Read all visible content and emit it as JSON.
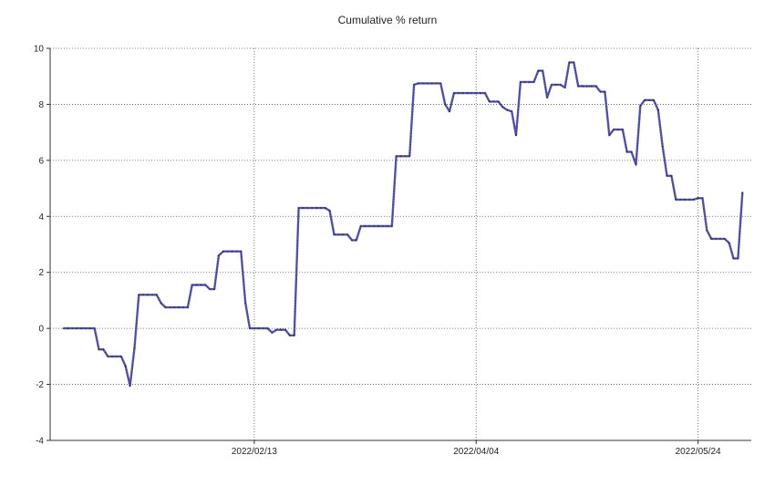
{
  "chart_data": {
    "type": "line",
    "title": "Cumulative % return",
    "xlabel": "",
    "ylabel": "",
    "ylim": [
      -4,
      10
    ],
    "yticks": [
      -4,
      -2,
      0,
      2,
      4,
      6,
      8,
      10
    ],
    "xlim": [
      "2021-12-29",
      "2022-06-05"
    ],
    "xtick_labels": [
      "2022/02/13",
      "2022/04/04",
      "2022/05/24"
    ],
    "xtick_values": [
      "2022-02-13",
      "2022-04-04",
      "2022-05-24"
    ],
    "grid": true,
    "legend": "none",
    "colors": {
      "line": "#5a5aa8",
      "grid": "#555555",
      "axis": "#333333"
    },
    "series": [
      {
        "x": [
          "2022-01-01",
          "2022-01-02",
          "2022-01-03",
          "2022-01-04",
          "2022-01-05",
          "2022-01-06",
          "2022-01-07",
          "2022-01-08",
          "2022-01-09",
          "2022-01-10",
          "2022-01-11",
          "2022-01-12",
          "2022-01-13",
          "2022-01-14",
          "2022-01-15",
          "2022-01-16",
          "2022-01-17",
          "2022-01-18",
          "2022-01-19",
          "2022-01-20",
          "2022-01-21",
          "2022-01-22",
          "2022-01-23",
          "2022-01-24",
          "2022-01-25",
          "2022-01-26",
          "2022-01-27",
          "2022-01-28",
          "2022-01-29",
          "2022-01-30",
          "2022-01-31",
          "2022-02-01",
          "2022-02-02",
          "2022-02-03",
          "2022-02-04",
          "2022-02-05",
          "2022-02-06",
          "2022-02-07",
          "2022-02-08",
          "2022-02-09",
          "2022-02-10",
          "2022-02-11",
          "2022-02-12",
          "2022-02-13",
          "2022-02-14",
          "2022-02-15",
          "2022-02-16",
          "2022-02-17",
          "2022-02-18",
          "2022-02-19",
          "2022-02-20",
          "2022-02-21",
          "2022-02-22",
          "2022-02-23",
          "2022-02-24",
          "2022-02-25",
          "2022-02-26",
          "2022-02-27",
          "2022-02-28",
          "2022-03-01",
          "2022-03-02",
          "2022-03-03",
          "2022-03-04",
          "2022-03-05",
          "2022-03-06",
          "2022-03-07",
          "2022-03-08",
          "2022-03-09",
          "2022-03-10",
          "2022-03-11",
          "2022-03-12",
          "2022-03-13",
          "2022-03-14",
          "2022-03-15",
          "2022-03-16",
          "2022-03-17",
          "2022-03-18",
          "2022-03-19",
          "2022-03-20",
          "2022-03-21",
          "2022-03-22",
          "2022-03-23",
          "2022-03-24",
          "2022-03-25",
          "2022-03-26",
          "2022-03-27",
          "2022-03-28",
          "2022-03-29",
          "2022-03-30",
          "2022-03-31",
          "2022-04-01",
          "2022-04-02",
          "2022-04-03",
          "2022-04-04",
          "2022-04-05",
          "2022-04-06",
          "2022-04-07",
          "2022-04-08",
          "2022-04-09",
          "2022-04-10",
          "2022-04-11",
          "2022-04-12",
          "2022-04-13",
          "2022-04-14",
          "2022-04-15",
          "2022-04-16",
          "2022-04-17",
          "2022-04-18",
          "2022-04-19",
          "2022-04-20",
          "2022-04-21",
          "2022-04-22",
          "2022-04-23",
          "2022-04-24",
          "2022-04-25",
          "2022-04-26",
          "2022-04-27",
          "2022-04-28",
          "2022-04-29",
          "2022-04-30",
          "2022-05-01",
          "2022-05-02",
          "2022-05-03",
          "2022-05-04",
          "2022-05-05",
          "2022-05-06",
          "2022-05-07",
          "2022-05-08",
          "2022-05-09",
          "2022-05-10",
          "2022-05-11",
          "2022-05-12",
          "2022-05-13",
          "2022-05-14",
          "2022-05-15",
          "2022-05-16",
          "2022-05-17",
          "2022-05-18",
          "2022-05-19",
          "2022-05-20",
          "2022-05-21",
          "2022-05-22",
          "2022-05-23",
          "2022-05-24",
          "2022-05-25",
          "2022-05-26",
          "2022-05-27",
          "2022-05-28",
          "2022-05-29",
          "2022-05-30",
          "2022-05-31",
          "2022-06-01",
          "2022-06-02",
          "2022-06-03"
        ],
        "values": [
          0,
          0,
          0,
          0,
          0,
          0,
          0,
          0,
          -0.75,
          -0.75,
          -1.0,
          -1.0,
          -1.0,
          -1.0,
          -1.35,
          -2.05,
          -0.7,
          1.2,
          1.2,
          1.2,
          1.2,
          1.2,
          0.9,
          0.75,
          0.75,
          0.75,
          0.75,
          0.75,
          0.75,
          1.55,
          1.55,
          1.55,
          1.55,
          1.4,
          1.4,
          2.6,
          2.75,
          2.75,
          2.75,
          2.75,
          2.75,
          0.9,
          0,
          0,
          0,
          0,
          0,
          -0.15,
          -0.05,
          -0.05,
          -0.05,
          -0.25,
          -0.25,
          4.3,
          4.3,
          4.3,
          4.3,
          4.3,
          4.3,
          4.3,
          4.2,
          3.35,
          3.35,
          3.35,
          3.35,
          3.15,
          3.15,
          3.65,
          3.65,
          3.65,
          3.65,
          3.65,
          3.65,
          3.65,
          3.65,
          6.15,
          6.15,
          6.15,
          6.15,
          8.7,
          8.75,
          8.75,
          8.75,
          8.75,
          8.75,
          8.75,
          8.0,
          7.75,
          8.4,
          8.4,
          8.4,
          8.4,
          8.4,
          8.4,
          8.4,
          8.4,
          8.1,
          8.1,
          8.1,
          7.9,
          7.8,
          7.75,
          6.9,
          8.8,
          8.8,
          8.8,
          8.8,
          9.2,
          9.2,
          8.25,
          8.7,
          8.7,
          8.7,
          8.6,
          9.5,
          9.5,
          8.65,
          8.65,
          8.65,
          8.65,
          8.65,
          8.45,
          8.45,
          6.9,
          7.1,
          7.1,
          7.1,
          6.3,
          6.3,
          5.85,
          7.95,
          8.15,
          8.15,
          8.15,
          7.8,
          6.5,
          5.45,
          5.45,
          4.6,
          4.6,
          4.6,
          4.6,
          4.6,
          4.65,
          4.65,
          3.5,
          3.2,
          3.2,
          3.2,
          3.2,
          3.05,
          2.5,
          2.5,
          4.85
        ]
      }
    ]
  }
}
